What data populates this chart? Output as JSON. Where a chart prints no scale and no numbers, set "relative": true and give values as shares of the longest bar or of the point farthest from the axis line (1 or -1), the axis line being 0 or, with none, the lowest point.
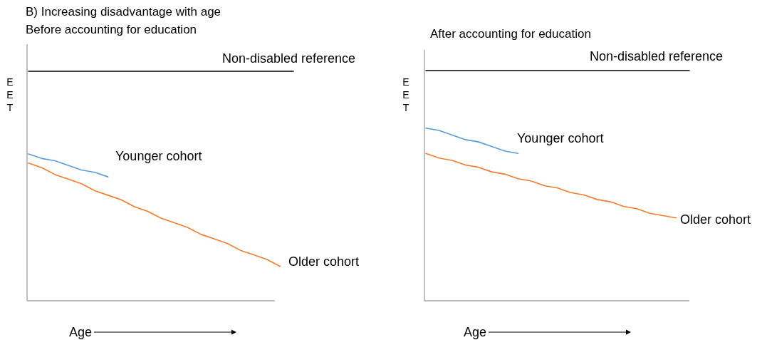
{
  "chart_data": [
    {
      "type": "line",
      "title": "B) Increasing disadvantage with age",
      "subtitle": "Before accounting for education",
      "xlabel": "Age",
      "ylabel": "EET",
      "relative": true,
      "categories": [
        null,
        null,
        null,
        null,
        null,
        null,
        null,
        null,
        null,
        null,
        null,
        null,
        null,
        null,
        null,
        null,
        null,
        null,
        null,
        null,
        null
      ],
      "series": [
        {
          "name": "Non-disabled reference",
          "color": "#000000",
          "values": [
            1,
            1,
            1,
            1,
            1,
            1,
            1,
            1,
            1,
            1,
            1,
            1,
            1,
            1,
            1,
            1,
            1,
            1,
            1,
            1,
            1
          ]
        },
        {
          "name": "Younger cohort",
          "color": "#5b9bd5",
          "values": [
            0.64,
            0.62,
            0.61,
            0.59,
            0.57,
            0.56,
            0.54,
            null,
            null,
            null,
            null,
            null,
            null,
            null,
            null,
            null,
            null,
            null,
            null,
            null,
            null
          ]
        },
        {
          "name": "Older cohort",
          "color": "#ed7d31",
          "values": [
            0.6,
            0.58,
            0.55,
            0.53,
            0.51,
            0.48,
            0.46,
            0.44,
            0.41,
            0.39,
            0.36,
            0.34,
            0.32,
            0.29,
            0.27,
            0.25,
            0.22,
            0.2,
            0.18,
            0.15,
            null
          ]
        }
      ]
    },
    {
      "type": "line",
      "title": "After accounting for education",
      "xlabel": "Age",
      "ylabel": "EET",
      "relative": true,
      "categories": [
        null,
        null,
        null,
        null,
        null,
        null,
        null,
        null,
        null,
        null,
        null,
        null,
        null,
        null,
        null,
        null,
        null,
        null,
        null,
        null,
        null
      ],
      "series": [
        {
          "name": "Non-disabled reference",
          "color": "#000000",
          "values": [
            1,
            1,
            1,
            1,
            1,
            1,
            1,
            1,
            1,
            1,
            1,
            1,
            1,
            1,
            1,
            1,
            1,
            1,
            1,
            1,
            1
          ]
        },
        {
          "name": "Younger cohort",
          "color": "#5b9bd5",
          "values": [
            0.75,
            0.74,
            0.72,
            0.7,
            0.69,
            0.67,
            0.65,
            0.64,
            null,
            null,
            null,
            null,
            null,
            null,
            null,
            null,
            null,
            null,
            null,
            null,
            null
          ]
        },
        {
          "name": "Older cohort",
          "color": "#ed7d31",
          "values": [
            0.64,
            0.62,
            0.61,
            0.59,
            0.58,
            0.56,
            0.55,
            0.53,
            0.52,
            0.5,
            0.49,
            0.47,
            0.46,
            0.44,
            0.43,
            0.41,
            0.4,
            0.38,
            0.37,
            0.36,
            null
          ]
        }
      ]
    }
  ]
}
